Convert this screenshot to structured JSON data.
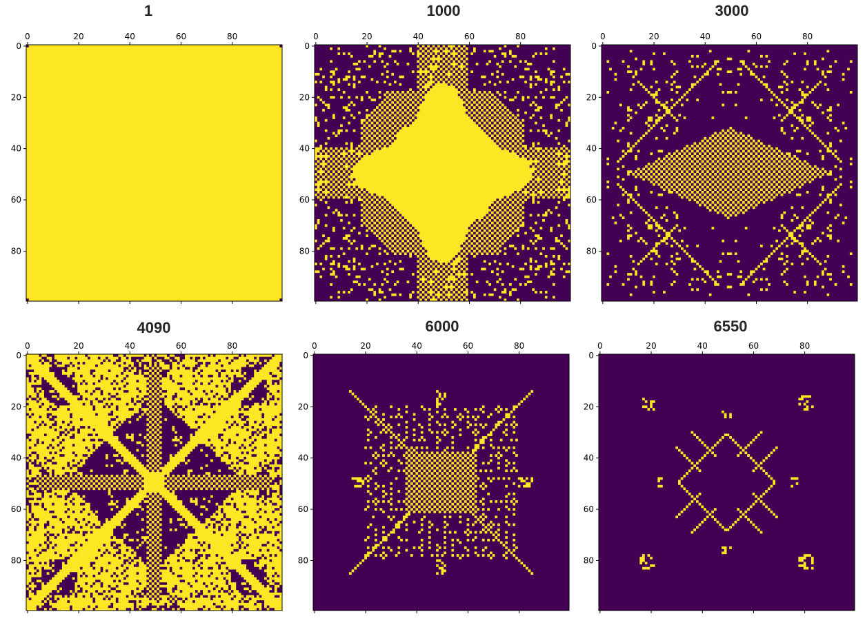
{
  "figure": {
    "panel_count": 6
  },
  "colors": {
    "dead": "#440154",
    "alive": "#fde725",
    "axis": "#000000"
  },
  "chart_data": [
    {
      "type": "heatmap",
      "title": "1",
      "grid_size": 100,
      "pattern": "full-except-corners",
      "colormap": "viridis (binary)",
      "xticks": [
        "0",
        "20",
        "40",
        "60",
        "80"
      ],
      "yticks": [
        "0",
        "20",
        "40",
        "60",
        "80"
      ],
      "xaxis_position": "top",
      "grid": false
    },
    {
      "type": "heatmap",
      "title": "1000",
      "grid_size": 100,
      "pattern": "eight-pointed star with checkerboard arms",
      "xticks": [
        "0",
        "20",
        "40",
        "60",
        "80"
      ],
      "yticks": [
        "0",
        "20",
        "40",
        "60",
        "80"
      ],
      "xaxis_position": "top",
      "grid": false
    },
    {
      "type": "heatmap",
      "title": "3000",
      "grid_size": 100,
      "pattern": "central checkerboard rhombus with scattered diagonal motifs",
      "xticks": [
        "0",
        "20",
        "40",
        "60",
        "80"
      ],
      "yticks": [
        "0",
        "20",
        "40",
        "60",
        "80"
      ],
      "xaxis_position": "top",
      "grid": false
    },
    {
      "type": "heatmap",
      "title": "4090",
      "grid_size": 100,
      "pattern": "dense four-fold lens symmetric",
      "xticks": [
        "0",
        "20",
        "40",
        "60",
        "80"
      ],
      "yticks": [
        "0",
        "20",
        "40",
        "60",
        "80"
      ],
      "xaxis_position": "top",
      "grid": false
    },
    {
      "type": "heatmap",
      "title": "6000",
      "grid_size": 100,
      "pattern": "central checkerboard square with radial dotted lines",
      "xticks": [
        "0",
        "20",
        "40",
        "60",
        "80"
      ],
      "yticks": [
        "0",
        "20",
        "40",
        "60",
        "80"
      ],
      "xaxis_position": "top",
      "grid": false
    },
    {
      "type": "heatmap",
      "title": "6550",
      "grid_size": 100,
      "pattern": "sparse diamond outline with corner motifs",
      "xticks": [
        "0",
        "20",
        "40",
        "60",
        "80"
      ],
      "yticks": [
        "0",
        "20",
        "40",
        "60",
        "80"
      ],
      "xaxis_position": "top",
      "grid": false
    }
  ]
}
